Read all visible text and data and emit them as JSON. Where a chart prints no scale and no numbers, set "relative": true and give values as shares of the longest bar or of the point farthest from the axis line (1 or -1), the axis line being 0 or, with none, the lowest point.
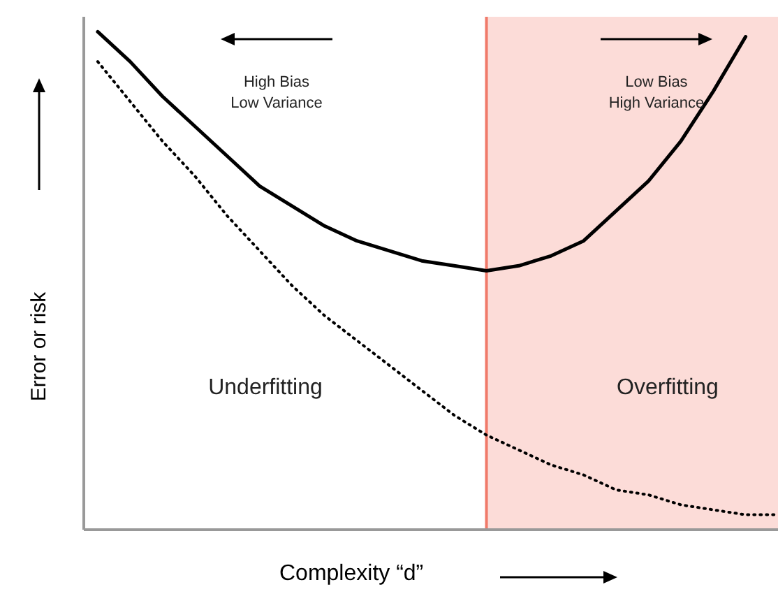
{
  "chart_data": {
    "type": "line",
    "relative": true,
    "xlabel": "Complexity “d”",
    "ylabel": "Error or risk",
    "grid": false,
    "marker": "none",
    "categories": [
      null,
      null,
      null,
      null,
      null,
      null,
      null,
      null,
      null,
      null,
      null,
      null,
      null,
      null,
      null,
      null,
      null,
      null,
      null,
      null,
      null,
      null
    ],
    "series": [
      {
        "color": "#000000",
        "line_style": "solid",
        "values": [
          1.0,
          0.94,
          0.87,
          0.81,
          0.75,
          0.69,
          0.65,
          0.61,
          0.58,
          0.56,
          0.54,
          0.53,
          0.52,
          0.53,
          0.55,
          0.58,
          0.64,
          0.7,
          0.78,
          0.88,
          0.99,
          null
        ]
      },
      {
        "color": "#000000",
        "line_style": "dotted",
        "values": [
          0.94,
          0.86,
          0.78,
          0.71,
          0.63,
          0.56,
          0.49,
          0.43,
          0.38,
          0.33,
          0.28,
          0.23,
          0.19,
          0.16,
          0.13,
          0.11,
          0.08,
          0.07,
          0.05,
          0.04,
          0.03,
          0.03
        ]
      }
    ],
    "annotations": [
      "High Bias\nLow Variance",
      "Low Bias\nHigh Variance",
      "Underfitting",
      "Overfitting"
    ]
  }
}
